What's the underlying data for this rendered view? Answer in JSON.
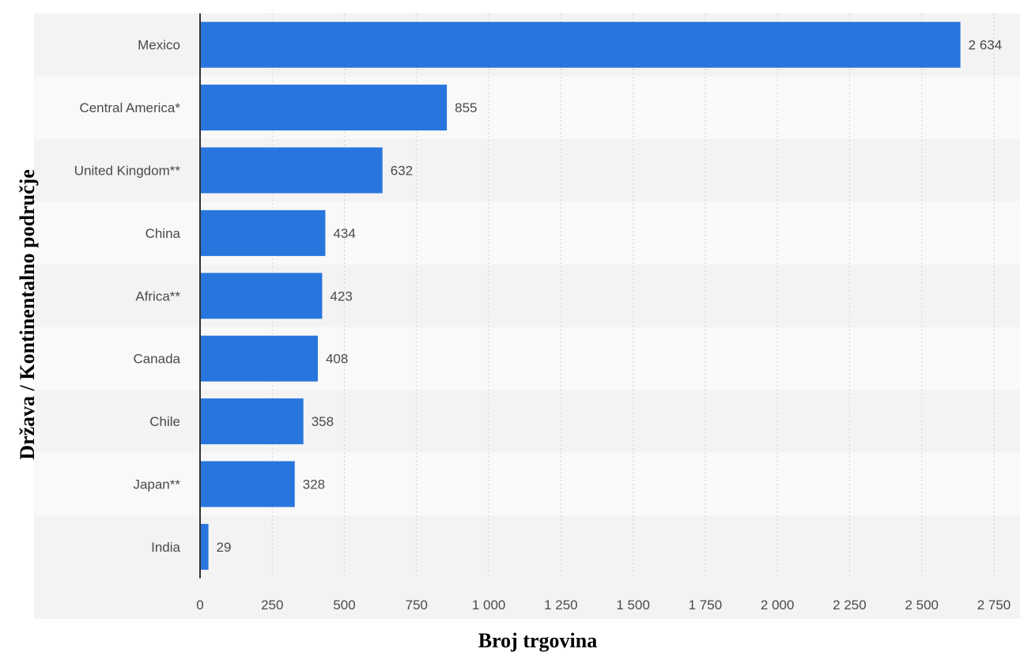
{
  "chart_data": {
    "type": "bar",
    "orientation": "horizontal",
    "categories": [
      "Mexico",
      "Central America*",
      "United Kingdom**",
      "China",
      "Africa**",
      "Canada",
      "Chile",
      "Japan**",
      "India"
    ],
    "values": [
      2634,
      855,
      632,
      434,
      423,
      408,
      358,
      328,
      29
    ],
    "value_labels": [
      "2 634",
      "855",
      "632",
      "434",
      "423",
      "408",
      "358",
      "328",
      "29"
    ],
    "xlabel": "Broj trgovina",
    "ylabel": "Država / Kontinentalno područje",
    "xlim": [
      0,
      2750
    ],
    "xticks": [
      0,
      250,
      500,
      750,
      1000,
      1250,
      1500,
      1750,
      2000,
      2250,
      2500,
      2750
    ],
    "xtick_labels": [
      "0",
      "250",
      "500",
      "750",
      "1 000",
      "1 250",
      "1 500",
      "1 750",
      "2 000",
      "2 250",
      "2 500",
      "2 750"
    ],
    "grid": true,
    "legend": "none",
    "colors": {
      "bar": "#2876dd",
      "band_dark": "#f3f3f3",
      "band_light": "#f9f9f9",
      "axis": "#333333",
      "grid": "#cfcfcf"
    }
  }
}
